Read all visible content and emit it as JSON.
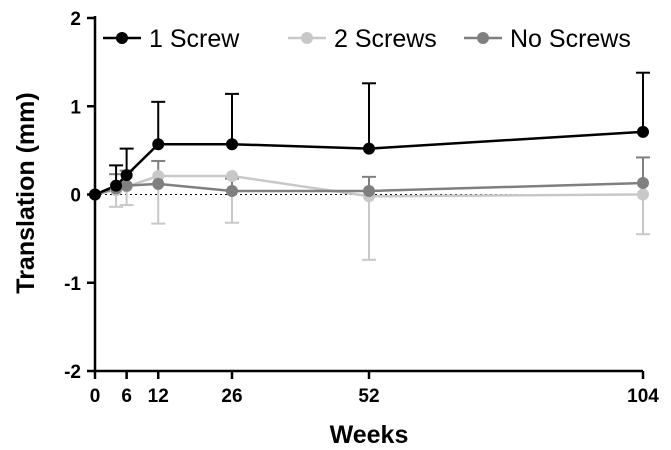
{
  "chart_data": {
    "type": "line",
    "xlabel": "Weeks",
    "ylabel": "Translation (mm)",
    "x": [
      0,
      4,
      6,
      12,
      26,
      52,
      104
    ],
    "xticks": [
      0,
      6,
      12,
      26,
      52,
      104
    ],
    "xlim": [
      0,
      104
    ],
    "ylim": [
      -2,
      2
    ],
    "yticks": [
      -2,
      -1,
      0,
      1,
      2
    ],
    "grid": false,
    "reference_line": {
      "y": 0,
      "style": "dotted"
    },
    "legend": {
      "position": "top",
      "columns": 3
    },
    "series": [
      {
        "name": "1 Screw",
        "color": "#000000",
        "values": [
          0,
          0.1,
          0.22,
          0.57,
          0.57,
          0.52,
          0.71
        ],
        "error_plus": [
          0,
          0.23,
          0.3,
          0.48,
          0.57,
          0.74,
          0.67
        ]
      },
      {
        "name": "2 Screws",
        "color": "#c8c8c8",
        "values": [
          0,
          0.05,
          0.09,
          0.21,
          0.21,
          -0.02,
          0.0
        ],
        "error_minus": [
          0,
          0.19,
          0.21,
          0.54,
          0.53,
          0.72,
          0.45
        ]
      },
      {
        "name": "No Screws",
        "color": "#7f7f7f",
        "values": [
          0,
          0.07,
          0.1,
          0.12,
          0.04,
          0.04,
          0.13
        ],
        "error_plus": [
          0,
          0.16,
          0.17,
          0.26,
          0.14,
          0.16,
          0.29
        ]
      }
    ]
  }
}
